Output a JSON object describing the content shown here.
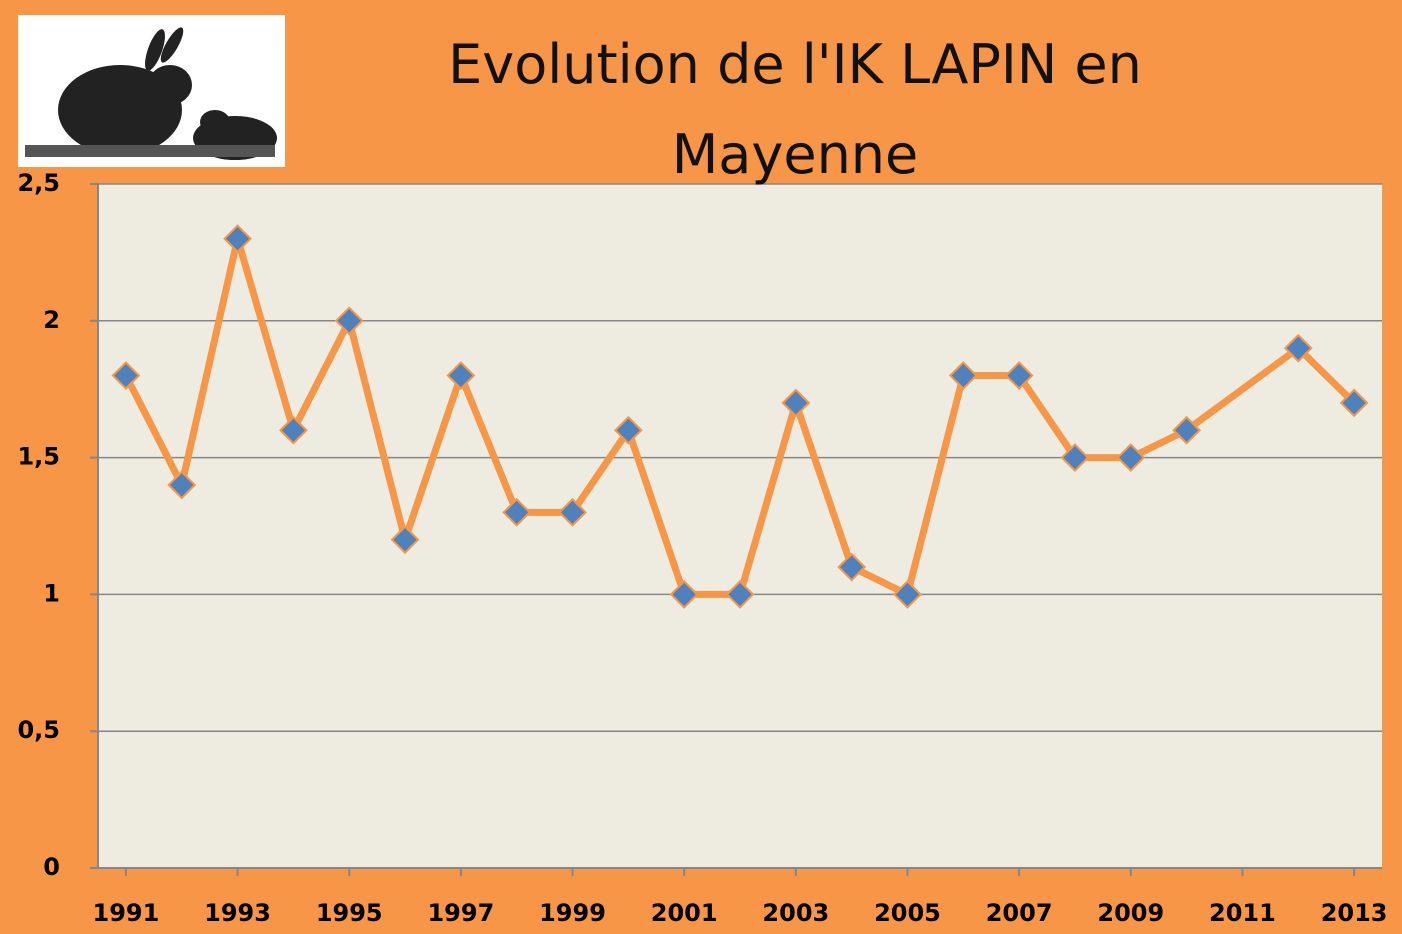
{
  "chart_data": {
    "type": "line",
    "title": "Evolution de l'IK LAPIN en Mayenne",
    "x": [
      1991,
      1992,
      1993,
      1994,
      1995,
      1996,
      1997,
      1998,
      1999,
      2000,
      2001,
      2002,
      2003,
      2004,
      2005,
      2006,
      2007,
      2008,
      2009,
      2010,
      2012,
      2013
    ],
    "values": [
      1.8,
      1.4,
      2.3,
      1.6,
      2.0,
      1.2,
      1.8,
      1.3,
      1.3,
      1.6,
      1.0,
      1.0,
      1.7,
      1.1,
      1.0,
      1.8,
      1.8,
      1.5,
      1.5,
      1.6,
      1.9,
      1.7
    ],
    "color": "#F79646",
    "marker_color": "#4F81BD",
    "xlim": [
      1990.5,
      2013.5
    ],
    "xticks": [
      1991,
      1993,
      1995,
      1997,
      1999,
      2001,
      2003,
      2005,
      2007,
      2009,
      2011,
      2013
    ],
    "ylim": [
      0,
      2.5
    ],
    "yticks": [
      0,
      {
        "value": 0.5,
        "label": "0,5"
      },
      1,
      {
        "value": 1.5,
        "label": "1,5"
      },
      2,
      {
        "value": 2.5,
        "label": "2,5"
      }
    ],
    "grid": true
  }
}
